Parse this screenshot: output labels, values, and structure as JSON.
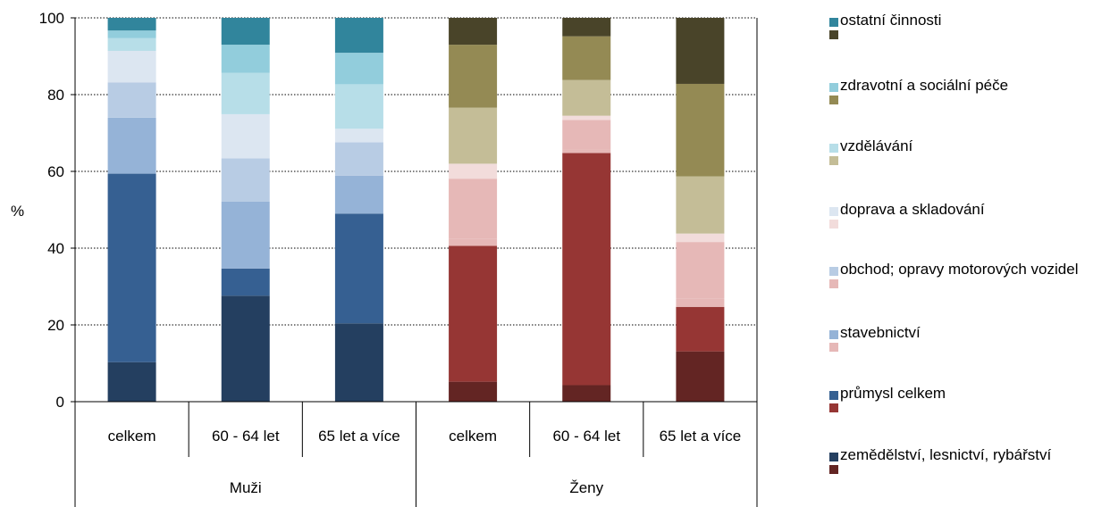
{
  "chart_data": {
    "type": "bar",
    "stacked": true,
    "ylabel": "%",
    "ylim": [
      0,
      100
    ],
    "yticks": [
      0,
      20,
      40,
      60,
      80,
      100
    ],
    "grid": "horizontal dotted",
    "legend_position": "right",
    "categories": [
      "celkem",
      "60 - 64 let",
      "65 let a více",
      "celkem",
      "60 - 64 let",
      "65 let a více"
    ],
    "groups": [
      {
        "name": "Muži",
        "categories": [
          0,
          1,
          2
        ]
      },
      {
        "name": "Ženy",
        "categories": [
          3,
          4,
          5
        ]
      }
    ],
    "series_labels": [
      "zemědělství, lesnictví, rybářství",
      "průmysl celkem",
      "stavebnictví",
      "obchod; opravy motorových vozidel",
      "doprava a skladování",
      "vzdělávání",
      "zdravotní a sociální péče",
      "ostatní činnosti"
    ],
    "colors_men": [
      "#243f60",
      "#366092",
      "#95b3d7",
      "#b8cce4",
      "#dce6f1",
      "#b7dee8",
      "#92cddc",
      "#31859c"
    ],
    "colors_women": [
      "#632523",
      "#963634",
      "#e6b8b7",
      "#e6b8b7",
      "#f2dcdb",
      "#c4bd97",
      "#948a54",
      "#494429"
    ],
    "series_men": [
      {
        "values": [
          10.3,
          27.6,
          20.4
        ]
      },
      {
        "values": [
          49.1,
          7.1,
          28.6
        ]
      },
      {
        "values": [
          14.6,
          17.4,
          9.9
        ]
      },
      {
        "values": [
          9.2,
          11.3,
          8.7
        ]
      },
      {
        "values": [
          8.2,
          11.5,
          3.5
        ]
      },
      {
        "values": [
          3.3,
          10.8,
          11.6
        ]
      },
      {
        "values": [
          2.0,
          7.3,
          8.2
        ]
      },
      {
        "values": [
          3.3,
          7.0,
          9.1
        ]
      }
    ],
    "series_women": [
      {
        "values": [
          5.2,
          4.3,
          13.1
        ]
      },
      {
        "values": [
          35.4,
          60.5,
          11.6
        ]
      },
      {
        "values": [
          1.8,
          1.0,
          2.2
        ]
      },
      {
        "values": [
          15.7,
          7.6,
          14.7
        ]
      },
      {
        "values": [
          3.9,
          1.1,
          2.2
        ]
      },
      {
        "values": [
          14.6,
          9.3,
          14.9
        ]
      },
      {
        "values": [
          16.4,
          11.4,
          24.1
        ]
      },
      {
        "values": [
          7.0,
          4.8,
          17.2
        ]
      }
    ]
  }
}
